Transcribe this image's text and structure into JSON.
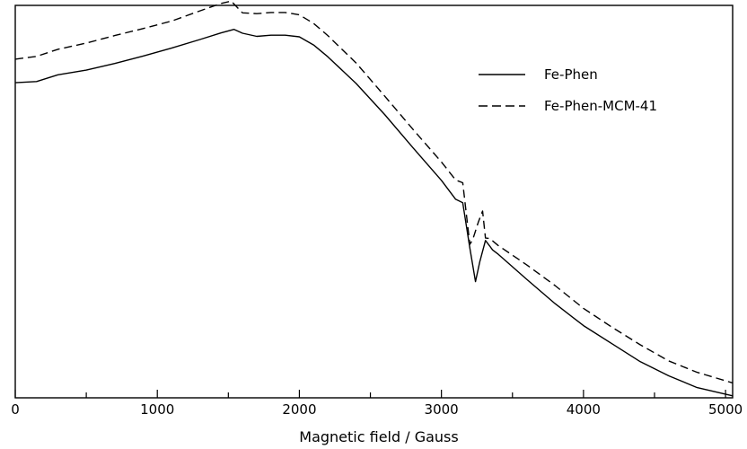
{
  "chart_data": {
    "type": "line",
    "title": "",
    "xlabel": "Magnetic field / Gauss",
    "ylabel": "",
    "xlim": [
      0,
      5050
    ],
    "ylim": [
      0,
      100
    ],
    "x_ticks": [
      0,
      1000,
      2000,
      3000,
      4000,
      5000
    ],
    "x_minor_ticks": [
      500,
      1500,
      2500,
      3500,
      4500
    ],
    "y_ticks_shown": false,
    "grid": false,
    "legend_position": "top-right",
    "series": [
      {
        "name": "Fe-Phen",
        "line_style": "solid",
        "color": "#000000",
        "x": [
          0,
          150,
          300,
          500,
          700,
          900,
          1100,
          1300,
          1450,
          1540,
          1600,
          1700,
          1800,
          1900,
          2000,
          2100,
          2200,
          2400,
          2600,
          2800,
          3000,
          3100,
          3150,
          3200,
          3240,
          3270,
          3310,
          3340,
          3360,
          3400,
          3600,
          3800,
          4000,
          4200,
          4400,
          4600,
          4800,
          5050
        ],
        "y": [
          80.3,
          80.6,
          82.3,
          83.5,
          85.2,
          87.1,
          89.1,
          91.3,
          93.0,
          93.9,
          92.9,
          92.1,
          92.4,
          92.4,
          92.0,
          89.9,
          86.9,
          80.1,
          72.2,
          63.7,
          55.4,
          50.6,
          49.7,
          38.2,
          29.6,
          34.7,
          40.1,
          38.7,
          37.7,
          36.6,
          30.2,
          24.0,
          18.4,
          13.8,
          9.2,
          5.6,
          2.6,
          0.5
        ]
      },
      {
        "name": "Fe-Phen-MCM-41",
        "line_style": "dashed",
        "color": "#000000",
        "x": [
          0,
          150,
          300,
          500,
          700,
          900,
          1100,
          1300,
          1450,
          1520,
          1600,
          1700,
          1800,
          1900,
          2000,
          2100,
          2200,
          2400,
          2600,
          2800,
          3000,
          3100,
          3150,
          3200,
          3220,
          3260,
          3290,
          3310,
          3340,
          3400,
          3600,
          3800,
          4000,
          4200,
          4400,
          4600,
          4800,
          5050
        ],
        "y": [
          86.3,
          87.0,
          88.8,
          90.4,
          92.3,
          94.1,
          96.0,
          98.6,
          100.5,
          101.1,
          98.1,
          97.9,
          98.2,
          98.2,
          97.6,
          95.4,
          92.3,
          85.3,
          76.9,
          68.4,
          60.1,
          55.5,
          54.8,
          39.1,
          40.3,
          44.8,
          47.6,
          40.7,
          40.6,
          38.8,
          33.9,
          28.6,
          22.8,
          18.0,
          13.5,
          9.4,
          6.5,
          3.8
        ]
      }
    ],
    "legend": {
      "entries": [
        {
          "label": "Fe-Phen",
          "line_style": "solid"
        },
        {
          "label": "Fe-Phen-MCM-41",
          "line_style": "dashed"
        }
      ]
    }
  }
}
